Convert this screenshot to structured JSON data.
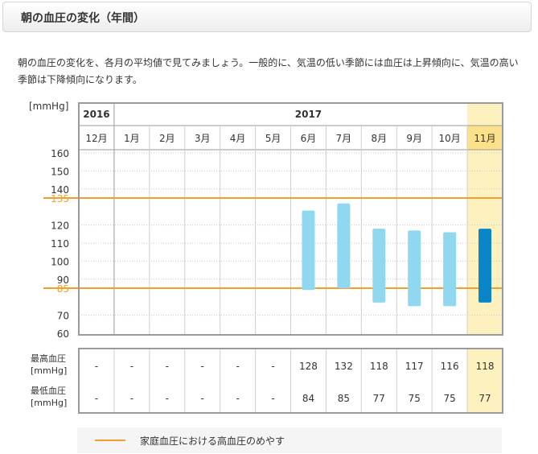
{
  "header": {
    "title": "朝の血圧の変化（年間）"
  },
  "description": "朝の血圧の変化を、各月の平均値で見てみましょう。一般的に、気温の低い季節には血圧は上昇傾向に、気温の高い季節は下降傾向になります。",
  "colors": {
    "threshold": "#f0a030",
    "bar": "#8fd8f0",
    "bar_highlight": "#0a86c8",
    "highlight_bg": "#fef1c0",
    "highlight_header": "#fde08a",
    "frame": "#9a9a9a"
  },
  "chart_data": {
    "type": "bar",
    "unit_label": "[mmHg]",
    "years": [
      {
        "label": "2016",
        "span": 1
      },
      {
        "label": "2017",
        "span": 11
      }
    ],
    "categories": [
      "12月",
      "1月",
      "2月",
      "3月",
      "4月",
      "5月",
      "6月",
      "7月",
      "8月",
      "9月",
      "10月",
      "11月"
    ],
    "highlight_index": 11,
    "ylim": [
      60,
      160
    ],
    "y_ticks": [
      "160",
      "150",
      "140",
      "135",
      "120",
      "110",
      "100",
      "90",
      "85",
      "70",
      "60"
    ],
    "thresholds": [
      135,
      85
    ],
    "series": [
      {
        "name": "最高血圧",
        "values": [
          null,
          null,
          null,
          null,
          null,
          null,
          128,
          132,
          118,
          117,
          116,
          118
        ]
      },
      {
        "name": "最低血圧",
        "values": [
          null,
          null,
          null,
          null,
          null,
          null,
          84,
          85,
          77,
          75,
          75,
          77
        ]
      }
    ],
    "table_rows": [
      {
        "label": "最高血圧",
        "unit": "[mmHg]",
        "cells": [
          "-",
          "-",
          "-",
          "-",
          "-",
          "-",
          "128",
          "132",
          "118",
          "117",
          "116",
          "118"
        ]
      },
      {
        "label": "最低血圧",
        "unit": "[mmHg]",
        "cells": [
          "-",
          "-",
          "-",
          "-",
          "-",
          "-",
          "84",
          "85",
          "77",
          "75",
          "75",
          "77"
        ]
      }
    ],
    "legend": "家庭血圧における高血圧のめやす"
  }
}
